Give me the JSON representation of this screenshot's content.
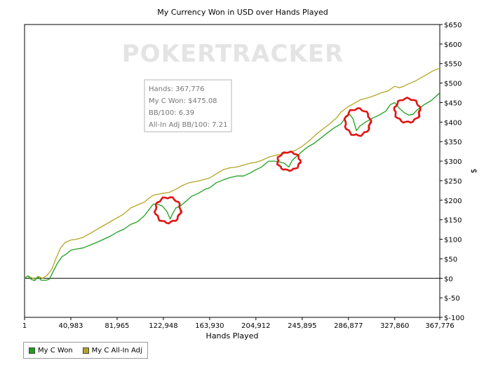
{
  "chart_data": {
    "type": "line",
    "title": "My Currency Won in USD over Hands Played",
    "xlabel": "Hands Played",
    "ylabel": "$",
    "xlim": [
      1,
      367776
    ],
    "ylim": [
      -100,
      650
    ],
    "x_ticks": [
      "1",
      "40,983",
      "81,965",
      "122,948",
      "163,930",
      "204,912",
      "245,895",
      "286,877",
      "327,860",
      "367,776"
    ],
    "y_ticks": [
      "$650",
      "$600",
      "$550",
      "$500",
      "$450",
      "$400",
      "$350",
      "$300",
      "$250",
      "$200",
      "$150",
      "$100",
      "$50",
      "$0",
      "$-50",
      "$-100"
    ],
    "grid": false,
    "legend_position": "bottom-left",
    "watermark": "POKERTRACKER",
    "series": [
      {
        "name": "My C Won",
        "color": "#1fa11f",
        "points": [
          [
            1,
            0
          ],
          [
            3000,
            6
          ],
          [
            6000,
            -3
          ],
          [
            9000,
            -6
          ],
          [
            12000,
            3
          ],
          [
            15000,
            -5
          ],
          [
            19000,
            -5
          ],
          [
            22000,
            -2
          ],
          [
            25000,
            15
          ],
          [
            29000,
            38
          ],
          [
            33000,
            55
          ],
          [
            37000,
            62
          ],
          [
            40983,
            72
          ],
          [
            46000,
            75
          ],
          [
            52000,
            78
          ],
          [
            58000,
            85
          ],
          [
            64000,
            92
          ],
          [
            70000,
            100
          ],
          [
            76000,
            108
          ],
          [
            81965,
            118
          ],
          [
            88000,
            126
          ],
          [
            94000,
            138
          ],
          [
            100000,
            145
          ],
          [
            106000,
            160
          ],
          [
            110000,
            175
          ],
          [
            114000,
            190
          ],
          [
            118000,
            190
          ],
          [
            122000,
            185
          ],
          [
            126000,
            172
          ],
          [
            129000,
            152
          ],
          [
            131000,
            165
          ],
          [
            134000,
            180
          ],
          [
            138000,
            185
          ],
          [
            142000,
            195
          ],
          [
            148000,
            210
          ],
          [
            154000,
            218
          ],
          [
            160000,
            228
          ],
          [
            163930,
            232
          ],
          [
            170000,
            245
          ],
          [
            176000,
            252
          ],
          [
            182000,
            258
          ],
          [
            188000,
            262
          ],
          [
            194000,
            262
          ],
          [
            200000,
            270
          ],
          [
            204912,
            278
          ],
          [
            210000,
            285
          ],
          [
            216000,
            300
          ],
          [
            222000,
            300
          ],
          [
            226000,
            298
          ],
          [
            230000,
            295
          ],
          [
            234000,
            285
          ],
          [
            237000,
            302
          ],
          [
            240000,
            310
          ],
          [
            245895,
            325
          ],
          [
            250000,
            335
          ],
          [
            256000,
            345
          ],
          [
            262000,
            358
          ],
          [
            268000,
            372
          ],
          [
            274000,
            385
          ],
          [
            280000,
            395
          ],
          [
            284000,
            410
          ],
          [
            288000,
            420
          ],
          [
            291000,
            408
          ],
          [
            294000,
            378
          ],
          [
            297000,
            390
          ],
          [
            302000,
            400
          ],
          [
            308000,
            410
          ],
          [
            314000,
            418
          ],
          [
            320000,
            428
          ],
          [
            324000,
            445
          ],
          [
            327860,
            450
          ],
          [
            332000,
            435
          ],
          [
            336000,
            425
          ],
          [
            340000,
            418
          ],
          [
            344000,
            420
          ],
          [
            348000,
            432
          ],
          [
            354000,
            445
          ],
          [
            360000,
            455
          ],
          [
            364000,
            465
          ],
          [
            367776,
            475
          ]
        ]
      },
      {
        "name": "My C All-In Adj",
        "color": "#b3a625",
        "points": [
          [
            1,
            0
          ],
          [
            3000,
            6
          ],
          [
            6000,
            2
          ],
          [
            9000,
            -2
          ],
          [
            12000,
            5
          ],
          [
            16000,
            0
          ],
          [
            20000,
            8
          ],
          [
            24000,
            22
          ],
          [
            28000,
            52
          ],
          [
            32000,
            78
          ],
          [
            36000,
            92
          ],
          [
            40983,
            98
          ],
          [
            46000,
            100
          ],
          [
            52000,
            105
          ],
          [
            58000,
            115
          ],
          [
            64000,
            125
          ],
          [
            70000,
            135
          ],
          [
            76000,
            145
          ],
          [
            81965,
            155
          ],
          [
            88000,
            165
          ],
          [
            94000,
            180
          ],
          [
            100000,
            188
          ],
          [
            106000,
            195
          ],
          [
            110000,
            205
          ],
          [
            114000,
            213
          ],
          [
            118000,
            215
          ],
          [
            122948,
            218
          ],
          [
            128000,
            220
          ],
          [
            134000,
            228
          ],
          [
            140000,
            238
          ],
          [
            146000,
            245
          ],
          [
            152000,
            248
          ],
          [
            158000,
            252
          ],
          [
            163930,
            257
          ],
          [
            170000,
            268
          ],
          [
            176000,
            278
          ],
          [
            182000,
            283
          ],
          [
            188000,
            285
          ],
          [
            194000,
            290
          ],
          [
            200000,
            295
          ],
          [
            204912,
            297
          ],
          [
            210000,
            302
          ],
          [
            216000,
            310
          ],
          [
            222000,
            315
          ],
          [
            228000,
            318
          ],
          [
            234000,
            322
          ],
          [
            240000,
            328
          ],
          [
            245895,
            338
          ],
          [
            252000,
            352
          ],
          [
            258000,
            368
          ],
          [
            264000,
            382
          ],
          [
            270000,
            395
          ],
          [
            276000,
            410
          ],
          [
            280000,
            425
          ],
          [
            286877,
            440
          ],
          [
            292000,
            448
          ],
          [
            298000,
            458
          ],
          [
            304000,
            462
          ],
          [
            310000,
            468
          ],
          [
            316000,
            475
          ],
          [
            322000,
            480
          ],
          [
            327860,
            492
          ],
          [
            332000,
            488
          ],
          [
            336000,
            492
          ],
          [
            340000,
            498
          ],
          [
            346000,
            505
          ],
          [
            352000,
            515
          ],
          [
            358000,
            525
          ],
          [
            362000,
            532
          ],
          [
            367776,
            538
          ]
        ]
      }
    ],
    "tooltip": {
      "lines": [
        "Hands: 367,776",
        "My C Won: $475.08",
        "BB/100: 6.39",
        "All-In Adj BB/100: 7.21"
      ]
    },
    "annotations": [
      {
        "type": "red-circle",
        "x": 127000,
        "y": 175
      },
      {
        "type": "red-circle",
        "x": 234000,
        "y": 300
      },
      {
        "type": "red-circle",
        "x": 295000,
        "y": 400
      },
      {
        "type": "red-circle",
        "x": 339000,
        "y": 430
      }
    ]
  }
}
